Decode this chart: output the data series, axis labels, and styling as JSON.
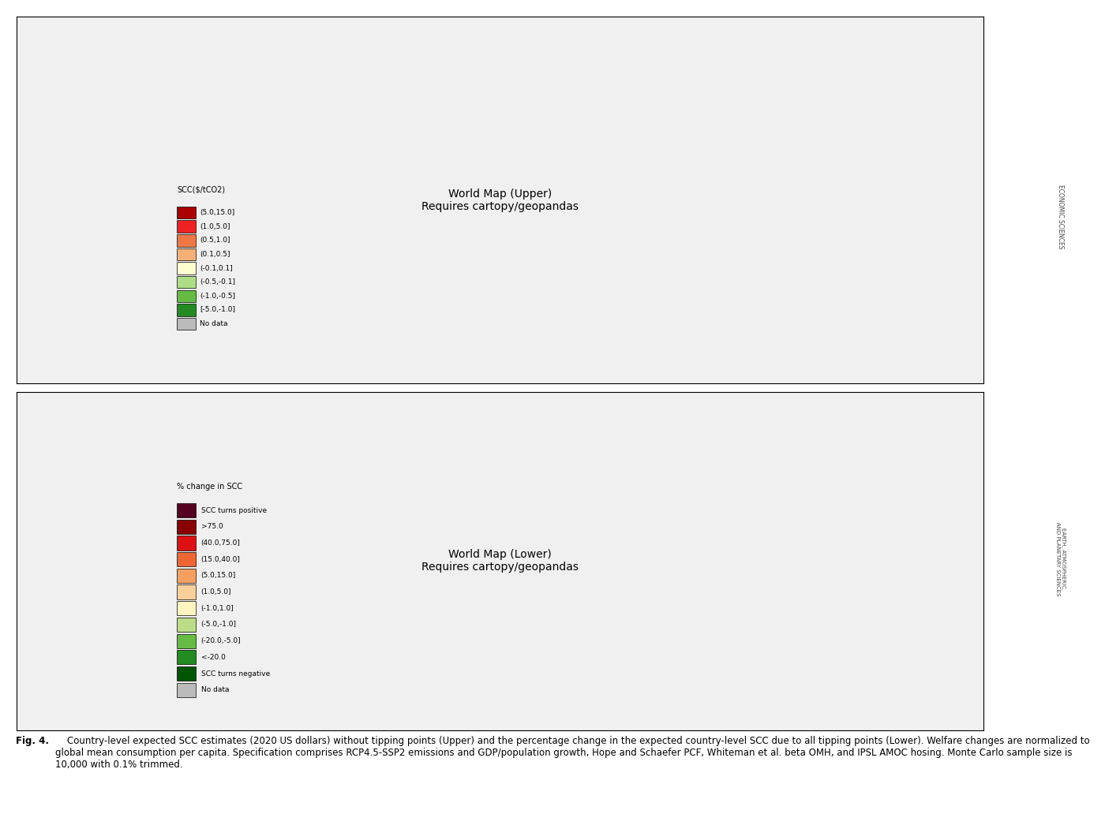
{
  "figure_width": 14.0,
  "figure_height": 10.46,
  "background_color": "#ffffff",
  "legend1_title": "SCC($/tCO2)",
  "legend1_entries": [
    {
      "label": "(5.0,15.0]",
      "color": "#AA0000"
    },
    {
      "label": "(1.0,5.0]",
      "color": "#EE2222"
    },
    {
      "label": "(0.5,1.0]",
      "color": "#EE7744"
    },
    {
      "label": "(0.1,0.5]",
      "color": "#F5B077"
    },
    {
      "label": "(-0.1,0.1]",
      "color": "#FFFDD0"
    },
    {
      "label": "(-0.5,-0.1]",
      "color": "#AEDD88"
    },
    {
      "label": "(-1.0,-0.5]",
      "color": "#66BB44"
    },
    {
      "label": "[-5.0,-1.0]",
      "color": "#228B22"
    },
    {
      "label": "No data",
      "color": "#BBBBBB"
    }
  ],
  "legend2_title": "% change in SCC",
  "legend2_entries": [
    {
      "label": "SCC turns positive",
      "color": "#550020"
    },
    {
      "label": ">75.0",
      "color": "#880000"
    },
    {
      "label": "(40.0,75.0]",
      "color": "#DD1111"
    },
    {
      "label": "(15.0,40.0]",
      "color": "#EE6633"
    },
    {
      "label": "(5.0,15.0]",
      "color": "#F5A060"
    },
    {
      "label": "(1.0,5.0]",
      "color": "#FBCF9A"
    },
    {
      "label": "(-1.0,1.0]",
      "color": "#FFF5C0"
    },
    {
      "label": "(-5.0,-1.0]",
      "color": "#BBDD88"
    },
    {
      "label": "(-20.0,-5.0]",
      "color": "#66BB44"
    },
    {
      "label": "<-20.0",
      "color": "#228B22"
    },
    {
      "label": "SCC turns negative",
      "color": "#005500"
    },
    {
      "label": "No data",
      "color": "#BBBBBB"
    }
  ],
  "upper_country_colors": {
    "AFG": "#EE7744",
    "AGO": "#AA0000",
    "ALB": "#F5B077",
    "DZA": "#EE7744",
    "AND": "#FFFDD0",
    "ARG": "#EE7744",
    "ARM": "#F5B077",
    "AUS": "#FFFDD0",
    "AUT": "#FFFDD0",
    "AZE": "#F5B077",
    "BHS": "#EE7744",
    "BHR": "#F5B077",
    "BGD": "#EE2222",
    "BLR": "#F5B077",
    "BEL": "#FFFDD0",
    "BLZ": "#EE7744",
    "BEN": "#AA0000",
    "BTN": "#EE7744",
    "BOL": "#EE7744",
    "BIH": "#F5B077",
    "BWA": "#F5B077",
    "BRA": "#AA0000",
    "BRN": "#EE7744",
    "BGR": "#F5B077",
    "BFA": "#AA0000",
    "BDI": "#AA0000",
    "CPV": "#EE2222",
    "KHM": "#EE2222",
    "CMR": "#AA0000",
    "CAN": "#AEDD88",
    "CAF": "#AA0000",
    "TCD": "#EE7744",
    "CHL": "#F5B077",
    "CHN": "#F5B077",
    "COL": "#EE2222",
    "COM": "#EE2222",
    "COG": "#AA0000",
    "COD": "#AA0000",
    "CRI": "#EE7744",
    "CIV": "#AA0000",
    "HRV": "#F5B077",
    "CUB": "#EE7744",
    "CYP": "#FFFDD0",
    "CZE": "#FFFDD0",
    "DNK": "#FFFDD0",
    "DJI": "#EE2222",
    "DOM": "#EE7744",
    "ECU": "#EE7744",
    "EGY": "#EE7744",
    "SLV": "#EE7744",
    "GNQ": "#AA0000",
    "ERI": "#EE2222",
    "EST": "#FFFDD0",
    "SWZ": "#EE2222",
    "ETH": "#AA0000",
    "FJI": "#EE7744",
    "FIN": "#FFFDD0",
    "FRA": "#FFFDD0",
    "GAB": "#AA0000",
    "GMB": "#EE2222",
    "GEO": "#F5B077",
    "DEU": "#FFFDD0",
    "GHA": "#EE2222",
    "GRC": "#F5B077",
    "GTM": "#EE7744",
    "GIN": "#AA0000",
    "GNB": "#AA0000",
    "GUY": "#EE7744",
    "HTI": "#EE7744",
    "HND": "#EE7744",
    "HUN": "#F5B077",
    "ISL": "#AEDD88",
    "IND": "#F5B077",
    "IDN": "#EE7744",
    "IRN": "#EE2222",
    "IRQ": "#EE7744",
    "IRL": "#AEDD88",
    "ISR": "#F5B077",
    "ITA": "#F5B077",
    "JAM": "#EE7744",
    "JPN": "#FFFDD0",
    "JOR": "#F5B077",
    "KAZ": "#F5B077",
    "KEN": "#EE2222",
    "KWT": "#F5B077",
    "KGZ": "#F5B077",
    "LAO": "#EE2222",
    "LVA": "#FFFDD0",
    "LBN": "#F5B077",
    "LSO": "#EE2222",
    "LBR": "#AA0000",
    "LBY": "#EE7744",
    "LIE": "#FFFDD0",
    "LTU": "#FFFDD0",
    "LUX": "#FFFDD0",
    "MDG": "#EE2222",
    "MWI": "#AA0000",
    "MYS": "#EE7744",
    "MDV": "#EE7744",
    "MLI": "#AA0000",
    "MLT": "#FFFDD0",
    "MRT": "#EE7744",
    "MEX": "#EE2222",
    "MDA": "#F5B077",
    "MNG": "#FFFDD0",
    "MNE": "#F5B077",
    "MAR": "#EE7744",
    "MOZ": "#AA0000",
    "MMR": "#EE2222",
    "NAM": "#F5B077",
    "NPL": "#EE7744",
    "NLD": "#FFFDD0",
    "NZL": "#FFFDD0",
    "NIC": "#EE7744",
    "NER": "#AA0000",
    "NGA": "#AA0000",
    "MKD": "#F5B077",
    "NOR": "#AEDD88",
    "OMN": "#F5B077",
    "PAK": "#EE2222",
    "PAN": "#EE7744",
    "PNG": "#EE7744",
    "PRY": "#EE7744",
    "PER": "#EE2222",
    "PHL": "#EE2222",
    "POL": "#F5B077",
    "PRT": "#F5B077",
    "QAT": "#F5B077",
    "ROU": "#F5B077",
    "RUS": "#AEDD88",
    "RWA": "#AA0000",
    "SAU": "#EE7744",
    "SEN": "#EE2222",
    "SRB": "#F5B077",
    "SLE": "#AA0000",
    "SGP": "#EE7744",
    "SVK": "#FFFDD0",
    "SVN": "#FFFDD0",
    "SOM": "#EE7744",
    "ZAF": "#EE2222",
    "SSD": "#AA0000",
    "ESP": "#F5B077",
    "LKA": "#EE7744",
    "SDN": "#AA0000",
    "SUR": "#EE7744",
    "SWE": "#FFFDD0",
    "CHE": "#FFFDD0",
    "SYR": "#F5B077",
    "TWN": "#FFFDD0",
    "TJK": "#F5B077",
    "TZA": "#AA0000",
    "THA": "#EE7744",
    "TLS": "#EE7744",
    "TGO": "#AA0000",
    "TTO": "#EE7744",
    "TUN": "#EE7744",
    "TKM": "#F5B077",
    "UGA": "#EE2222",
    "UKR": "#F5B077",
    "ARE": "#F5B077",
    "GBR": "#FFFDD0",
    "USA": "#FFFDD0",
    "URY": "#EE7744",
    "UZB": "#F5B077",
    "VUT": "#EE7744",
    "VEN": "#EE2222",
    "VNM": "#EE2222",
    "YEM": "#EE7744",
    "ZMB": "#AA0000",
    "ZWE": "#EE2222",
    "GRL": "#BBBBBB",
    "ATA": "#BBBBBB",
    "PSE": "#F5B077",
    "XKX": "#F5B077",
    "PRI": "#EE7744",
    "SOL": "#EE7744"
  },
  "lower_country_colors": {
    "AFG": "#DD1111",
    "AGO": "#880000",
    "ALB": "#EE6633",
    "DZA": "#DD1111",
    "ARG": "#EE6633",
    "ARM": "#EE6633",
    "AUS": "#F5A060",
    "AUT": "#EE6633",
    "AZE": "#EE6633",
    "BHS": "#EE6633",
    "BHR": "#EE6633",
    "BGD": "#DD1111",
    "BLR": "#EE6633",
    "BEL": "#FBCF9A",
    "BLZ": "#EE6633",
    "BEN": "#880000",
    "BTN": "#EE6633",
    "BOL": "#EE6633",
    "BIH": "#EE6633",
    "BWA": "#F5A060",
    "BRA": "#550020",
    "BRN": "#EE6633",
    "BGR": "#EE6633",
    "BFA": "#880000",
    "BDI": "#880000",
    "CPV": "#DD1111",
    "KHM": "#DD1111",
    "CMR": "#880000",
    "CAN": "#FFF5C0",
    "CAF": "#880000",
    "TCD": "#880000",
    "CHL": "#F5A060",
    "CHN": "#BBDD88",
    "COL": "#DD1111",
    "COM": "#DD1111",
    "COG": "#880000",
    "COD": "#550020",
    "CRI": "#EE6633",
    "CIV": "#880000",
    "HRV": "#EE6633",
    "CUB": "#EE6633",
    "CYP": "#FBCF9A",
    "CZE": "#EE6633",
    "DNK": "#FFF5C0",
    "DJI": "#DD1111",
    "DOM": "#EE6633",
    "ECU": "#EE6633",
    "EGY": "#DD1111",
    "SLV": "#EE6633",
    "GNQ": "#880000",
    "ERI": "#DD1111",
    "EST": "#FBCF9A",
    "SWZ": "#DD1111",
    "ETH": "#880000",
    "FJI": "#EE6633",
    "FIN": "#FFF5C0",
    "FRA": "#FBCF9A",
    "GAB": "#880000",
    "GMB": "#DD1111",
    "GEO": "#EE6633",
    "DEU": "#FBCF9A",
    "GHA": "#DD1111",
    "GRC": "#EE6633",
    "GTM": "#EE6633",
    "GIN": "#880000",
    "GNB": "#880000",
    "GUY": "#F5A060",
    "HTI": "#EE6633",
    "HND": "#EE6633",
    "HUN": "#EE6633",
    "ISL": "#FFF5C0",
    "IND": "#DD1111",
    "IDN": "#DD1111",
    "IRN": "#DD1111",
    "IRQ": "#DD1111",
    "IRL": "#FBCF9A",
    "ISR": "#EE6633",
    "ITA": "#EE6633",
    "JAM": "#EE6633",
    "JPN": "#FFF5C0",
    "JOR": "#EE6633",
    "KAZ": "#EE6633",
    "KEN": "#DD1111",
    "KWT": "#EE6633",
    "KGZ": "#EE6633",
    "LAO": "#DD1111",
    "LVA": "#FBCF9A",
    "LBN": "#EE6633",
    "LSO": "#DD1111",
    "LBR": "#880000",
    "LBY": "#DD1111",
    "LTU": "#FBCF9A",
    "LUX": "#FBCF9A",
    "MDG": "#DD1111",
    "MWI": "#880000",
    "MYS": "#DD1111",
    "MLI": "#880000",
    "MRT": "#DD1111",
    "MEX": "#DD1111",
    "MDA": "#EE6633",
    "MNG": "#FFF5C0",
    "MNE": "#EE6633",
    "MAR": "#DD1111",
    "MOZ": "#880000",
    "MMR": "#DD1111",
    "NAM": "#F5A060",
    "NPL": "#DD1111",
    "NLD": "#FBCF9A",
    "NZL": "#F5A060",
    "NIC": "#EE6633",
    "NER": "#880000",
    "NGA": "#880000",
    "MKD": "#EE6633",
    "NOR": "#FFF5C0",
    "OMN": "#EE6633",
    "PAK": "#DD1111",
    "PAN": "#EE6633",
    "PNG": "#EE6633",
    "PRY": "#EE6633",
    "PER": "#EE6633",
    "PHL": "#DD1111",
    "POL": "#EE6633",
    "PRT": "#EE6633",
    "QAT": "#EE6633",
    "ROU": "#EE6633",
    "RUS": "#FFF5C0",
    "RWA": "#880000",
    "SAU": "#DD1111",
    "SEN": "#DD1111",
    "SRB": "#EE6633",
    "SLE": "#880000",
    "SGP": "#EE6633",
    "SVK": "#EE6633",
    "SVN": "#EE6633",
    "SOM": "#DD1111",
    "ZAF": "#DD1111",
    "SSD": "#880000",
    "ESP": "#EE6633",
    "LKA": "#DD1111",
    "SDN": "#880000",
    "SUR": "#EE6633",
    "SWE": "#FFF5C0",
    "CHE": "#FBCF9A",
    "SYR": "#DD1111",
    "TJK": "#EE6633",
    "TZA": "#880000",
    "THA": "#DD1111",
    "TLS": "#DD1111",
    "TGO": "#880000",
    "TTO": "#EE6633",
    "TUN": "#DD1111",
    "TKM": "#EE6633",
    "UGA": "#880000",
    "UKR": "#EE6633",
    "ARE": "#EE6633",
    "GBR": "#FBCF9A",
    "USA": "#FBCF9A",
    "URY": "#EE6633",
    "UZB": "#EE6633",
    "VUT": "#EE6633",
    "VEN": "#DD1111",
    "VNM": "#DD1111",
    "YEM": "#DD1111",
    "ZMB": "#880000",
    "ZWE": "#DD1111",
    "GRL": "#BBBBBB",
    "PSE": "#EE6633",
    "XKX": "#EE6633",
    "TWN": "#FFF5C0",
    "PRI": "#EE6633"
  },
  "caption_bold": "Fig. 4.",
  "caption_italic_upper": "Upper",
  "caption_italic_lower": "Lower",
  "caption_text_before_upper": "Country-level expected SCC estimates (2020 US dollars) without tipping points (",
  "caption_text_after_upper": ") and the percentage change in the expected country-level SCC due to all tipping points (",
  "caption_text_after_lower": "). Welfare changes are normalized to global mean consumption per capita. Specification comprises RCP4.5-SSP2 emissions and GDP/population growth, Hope and Schaefer PCF, Whiteman et al. beta OMH, and IPSL AMOC hosing. Monte Carlo sample size is 10,000 with 0.1% trimmed.",
  "sidebar_text1": "ECONOMIC SCIENCES",
  "sidebar_text2": "EARTH, ATMOSPHERIC,\nAND PLANETARY SCIENCES",
  "sidebar_bg_color": "#C0C0C0",
  "sidebar_text_color": "#444444"
}
